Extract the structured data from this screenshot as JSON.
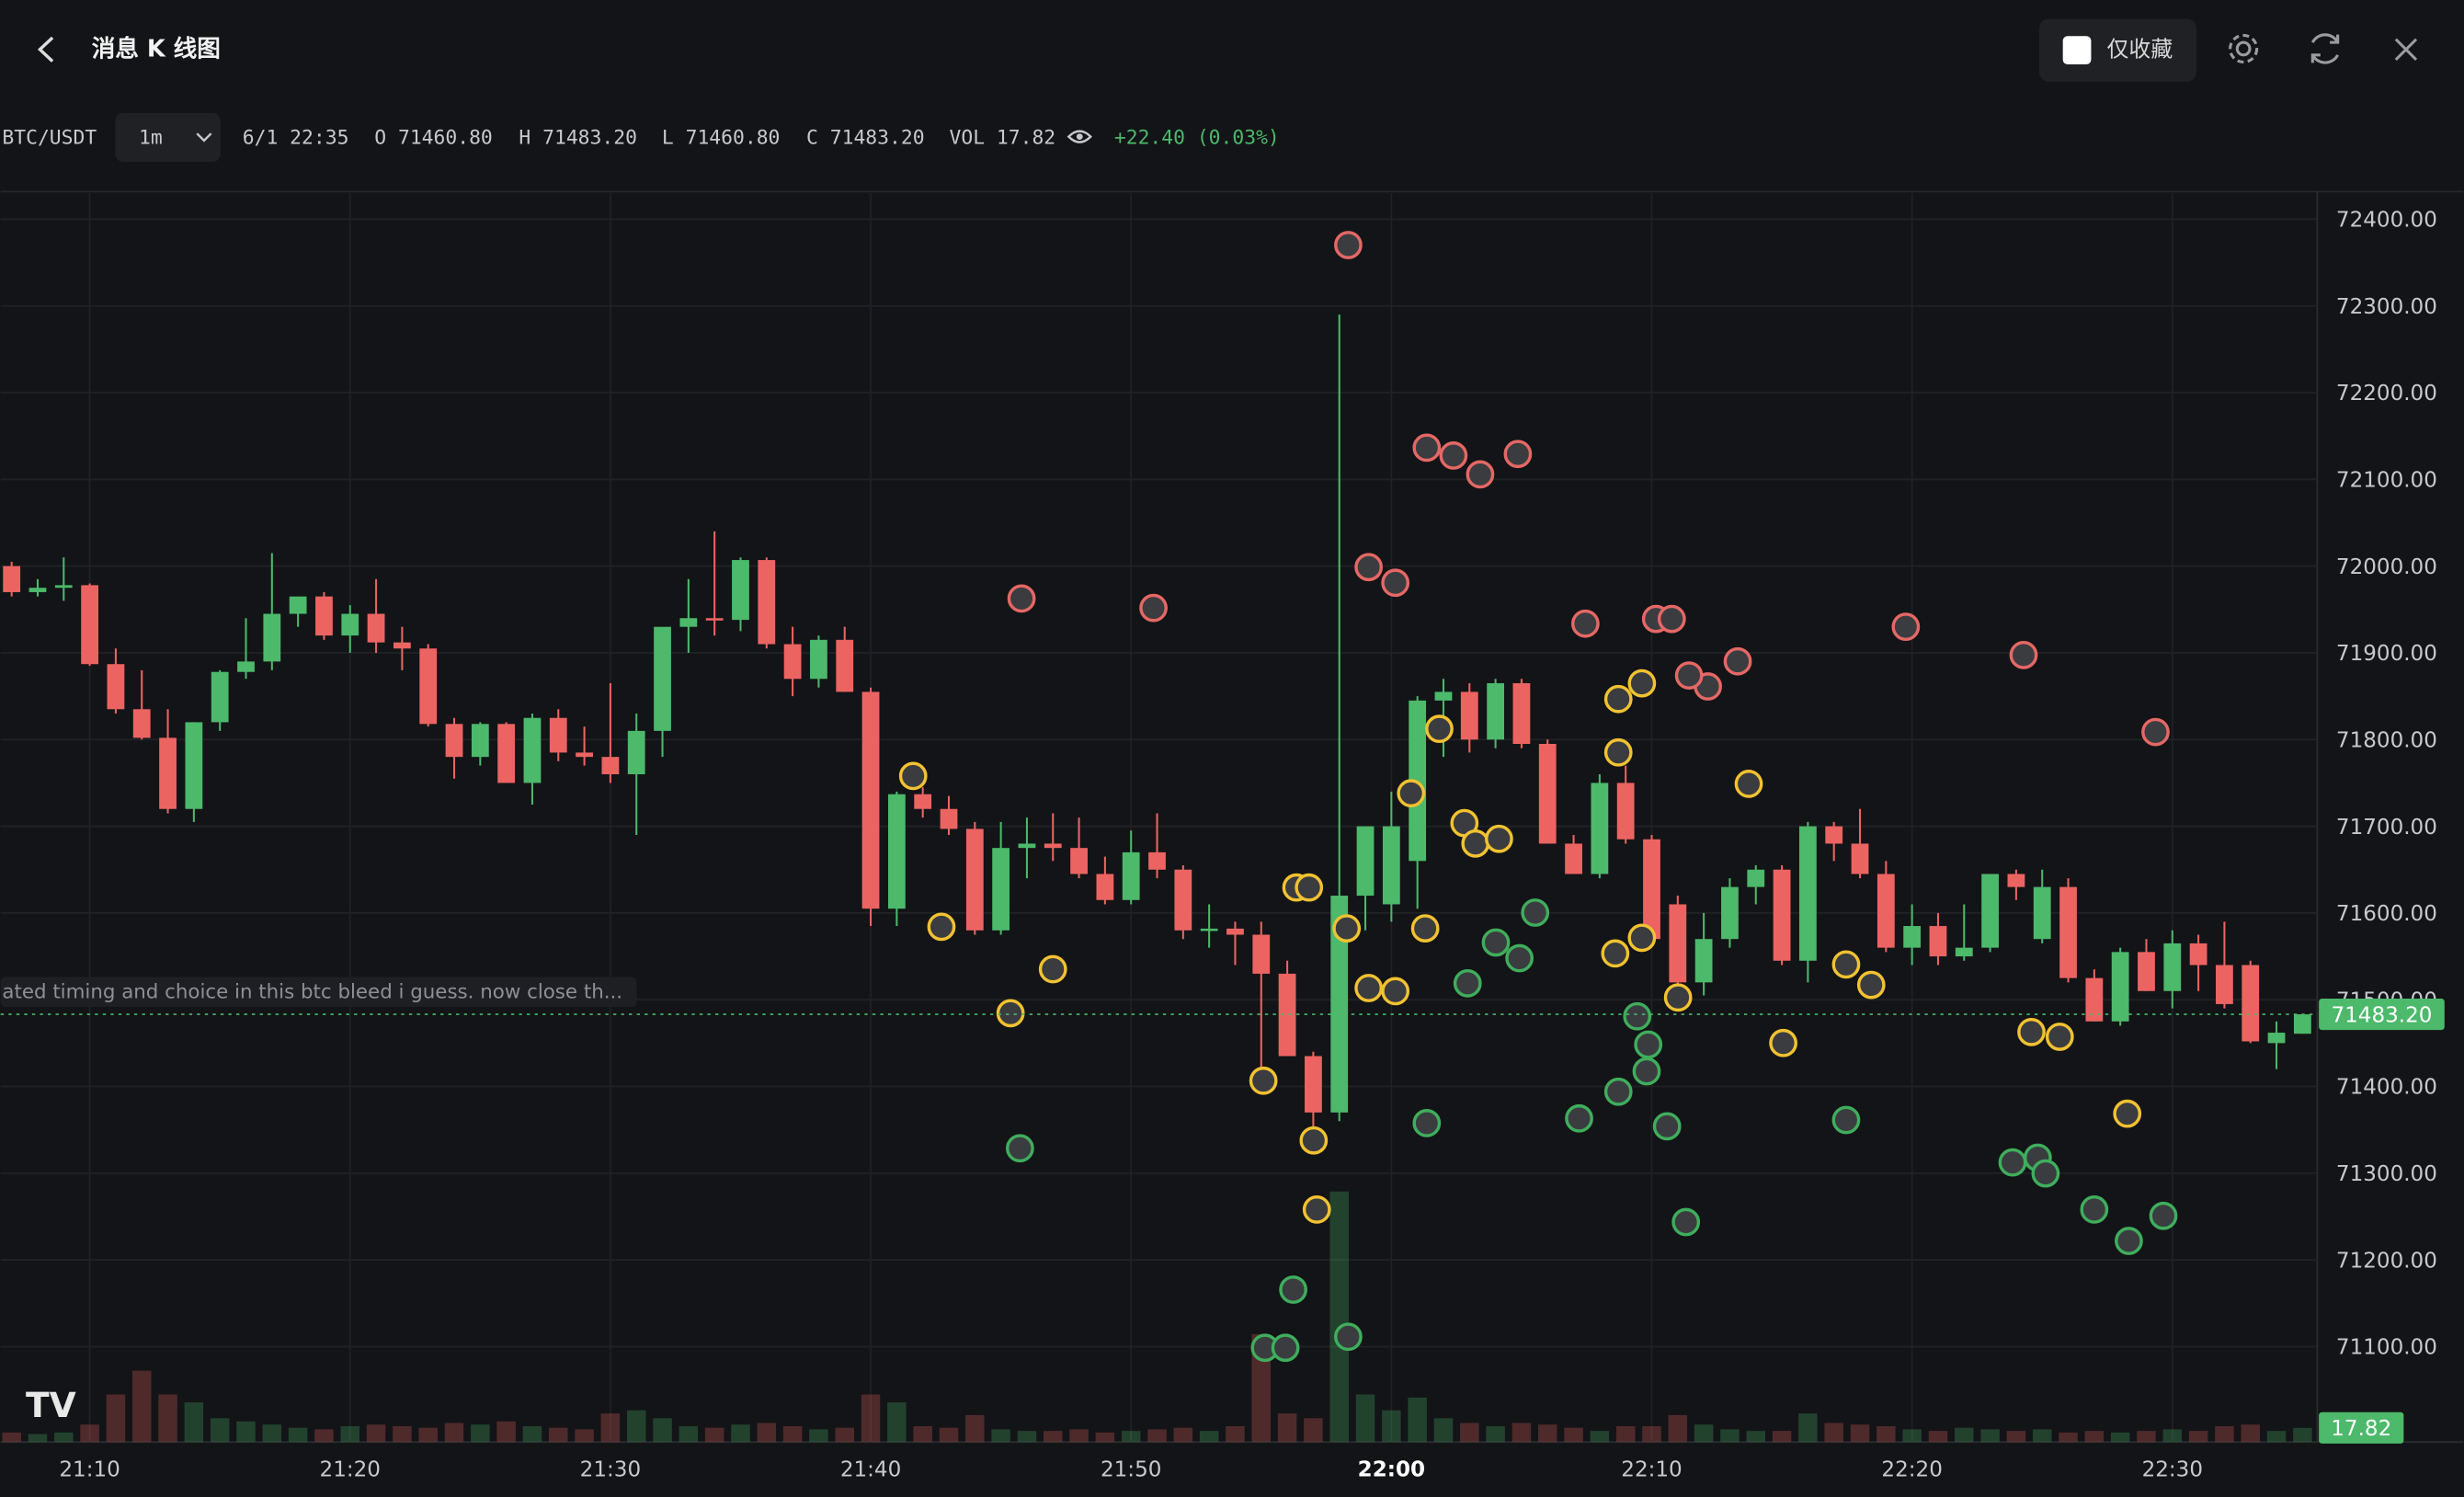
{
  "header": {
    "title": "消息 K 线图",
    "favorites_only": "仅收藏"
  },
  "toolbar": {
    "symbol": "BTC/USDT",
    "interval": "1m",
    "time": "6/1 22:35",
    "open": "O 71460.80",
    "high": "H 71483.20",
    "low": "L 71460.80",
    "close": "C 71483.20",
    "volume": "VOL 17.82",
    "change": "+22.40 (0.03%)"
  },
  "chart_data": {
    "type": "candlestick",
    "categories": [
      null,
      null,
      null,
      "21:10",
      null,
      null,
      null,
      null,
      null,
      null,
      null,
      null,
      null,
      "21:20",
      null,
      null,
      null,
      null,
      null,
      null,
      null,
      null,
      null,
      "21:30",
      null,
      null,
      null,
      null,
      null,
      null,
      null,
      null,
      null,
      "21:40",
      null,
      null,
      null,
      null,
      null,
      null,
      null,
      null,
      null,
      "21:50",
      null,
      null,
      null,
      null,
      null,
      null,
      null,
      null,
      null,
      "22:00",
      null,
      null,
      null,
      null,
      null,
      null,
      null,
      null,
      null,
      "22:10",
      null,
      null,
      null,
      null,
      null,
      null,
      null,
      null,
      null,
      "22:20",
      null,
      null,
      null,
      null,
      null,
      null,
      null,
      null,
      null,
      "22:30",
      null,
      null,
      null,
      null,
      null
    ],
    "open": [
      72000,
      71970,
      71975,
      71978,
      71887,
      71835,
      71802,
      71720,
      71820,
      71878,
      71890,
      71945,
      71965,
      71920,
      71945,
      71912,
      71905,
      71818,
      71780,
      71818,
      71750,
      71825,
      71785,
      71780,
      71760,
      71810,
      71930,
      71940,
      71938,
      72007,
      71910,
      71870,
      71915,
      71855,
      71605,
      71737,
      71720,
      71697,
      71580,
      71675,
      71680,
      71675,
      71645,
      71615,
      71670,
      71650,
      71580,
      71582,
      71575,
      71530,
      71435,
      71370,
      71620,
      71610,
      71660,
      71845,
      71855,
      71800,
      71865,
      71795,
      71680,
      71645,
      71750,
      71685,
      71610,
      71520,
      71570,
      71630,
      71650,
      71545,
      71700,
      71680,
      71645,
      71560,
      71585,
      71550,
      71560,
      71645,
      71570,
      71630,
      71525,
      71475,
      71555,
      71510,
      71565,
      71540,
      71540,
      71450,
      71460.8
    ],
    "high": [
      72005,
      71985,
      72010,
      71980,
      71905,
      71880,
      71835,
      71820,
      71880,
      71940,
      72015,
      71960,
      71970,
      71955,
      71985,
      71930,
      71910,
      71825,
      71820,
      71820,
      71830,
      71835,
      71815,
      71865,
      71830,
      71925,
      71985,
      72040,
      72010,
      72010,
      71930,
      71920,
      71930,
      71860,
      71740,
      71745,
      71735,
      71705,
      71705,
      71710,
      71715,
      71710,
      71665,
      71695,
      71715,
      71655,
      71610,
      71590,
      71590,
      71545,
      71440,
      72290,
      71690,
      71740,
      71850,
      71870,
      71865,
      71870,
      71870,
      71800,
      71690,
      71760,
      71770,
      71690,
      71620,
      71600,
      71640,
      71655,
      71655,
      71705,
      71705,
      71720,
      71660,
      71610,
      71600,
      71610,
      71645,
      71650,
      71650,
      71640,
      71535,
      71560,
      71570,
      71580,
      71575,
      71590,
      71545,
      71475,
      71483.2
    ],
    "low": [
      71965,
      71965,
      71960,
      71885,
      71830,
      71800,
      71715,
      71705,
      71810,
      71870,
      71880,
      71930,
      71915,
      71900,
      71900,
      71880,
      71815,
      71755,
      71770,
      71750,
      71725,
      71775,
      71770,
      71750,
      71690,
      71780,
      71900,
      71920,
      71925,
      71905,
      71850,
      71860,
      71855,
      71585,
      71585,
      71710,
      71690,
      71575,
      71575,
      71640,
      71660,
      71640,
      71610,
      71610,
      71640,
      71570,
      71560,
      71540,
      71400,
      71435,
      71345,
      71360,
      71580,
      71590,
      71605,
      71780,
      71785,
      71790,
      71790,
      71680,
      71645,
      71640,
      71680,
      71570,
      71515,
      71505,
      71560,
      71610,
      71540,
      71520,
      71660,
      71640,
      71555,
      71540,
      71540,
      71545,
      71555,
      71615,
      71565,
      71520,
      71475,
      71470,
      71510,
      71490,
      71510,
      71490,
      71450,
      71420,
      71460.8
    ],
    "close": [
      71970,
      71975,
      71978,
      71887,
      71835,
      71802,
      71720,
      71820,
      71878,
      71890,
      71945,
      71965,
      71920,
      71945,
      71912,
      71905,
      71818,
      71780,
      71818,
      71750,
      71825,
      71785,
      71780,
      71760,
      71810,
      71930,
      71940,
      71938,
      72007,
      71910,
      71870,
      71915,
      71855,
      71605,
      71737,
      71720,
      71697,
      71580,
      71675,
      71680,
      71675,
      71645,
      71615,
      71670,
      71650,
      71580,
      71582,
      71575,
      71530,
      71435,
      71370,
      71620,
      71700,
      71700,
      71845,
      71855,
      71800,
      71865,
      71795,
      71680,
      71645,
      71750,
      71685,
      71570,
      71520,
      71570,
      71630,
      71650,
      71545,
      71700,
      71680,
      71645,
      71560,
      71585,
      71550,
      71560,
      71645,
      71630,
      71630,
      71525,
      71475,
      71555,
      71510,
      71565,
      71540,
      71495,
      71452,
      71462,
      71483.2
    ],
    "volume": [
      12,
      10,
      12,
      22,
      60,
      90,
      60,
      50,
      30,
      26,
      22,
      18,
      16,
      20,
      22,
      20,
      18,
      24,
      22,
      26,
      20,
      18,
      16,
      36,
      40,
      30,
      20,
      18,
      22,
      24,
      20,
      16,
      18,
      60,
      50,
      20,
      18,
      34,
      16,
      14,
      14,
      16,
      12,
      14,
      16,
      18,
      14,
      20,
      136,
      36,
      30,
      316,
      60,
      40,
      56,
      30,
      24,
      20,
      24,
      22,
      18,
      14,
      20,
      20,
      34,
      22,
      16,
      14,
      14,
      36,
      24,
      22,
      20,
      16,
      14,
      18,
      16,
      14,
      16,
      12,
      14,
      12,
      14,
      16,
      14,
      20,
      22,
      14,
      17.82
    ],
    "ylim": [
      70990,
      72430
    ],
    "yticks": [
      {
        "value": 72400,
        "label": "72400.00"
      },
      {
        "value": 72300,
        "label": "72300.00"
      },
      {
        "value": 72200,
        "label": "72200.00"
      },
      {
        "value": 72100,
        "label": "72100.00"
      },
      {
        "value": 72000,
        "label": "72000.00"
      },
      {
        "value": 71900,
        "label": "71900.00"
      },
      {
        "value": 71800,
        "label": "71800.00"
      },
      {
        "value": 71700,
        "label": "71700.00"
      },
      {
        "value": 71600,
        "label": "71600.00"
      },
      {
        "value": 71500,
        "label": "71500.00"
      },
      {
        "value": 71400,
        "label": "71400.00"
      },
      {
        "value": 71300,
        "label": "71300.00"
      },
      {
        "value": 71200,
        "label": "71200.00"
      },
      {
        "value": 71100,
        "label": "71100.00"
      }
    ],
    "volume_lim": [
      0,
      1575
    ],
    "up_color": "#4cb96b",
    "down_color": "#ec6462",
    "grid": true,
    "last_price": {
      "value": 71483.2,
      "label": "71483.20"
    },
    "annotation": "ated timing and choice in this btc bleed i guess. now close th..."
  }
}
